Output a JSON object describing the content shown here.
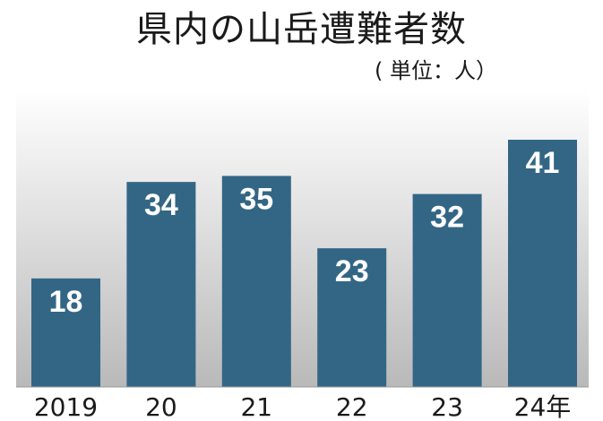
{
  "chart_data": {
    "type": "bar",
    "title": "県内の山岳遭難者数",
    "unit": "( 単位：人）",
    "categories": [
      "2019",
      "20",
      "21",
      "22",
      "23",
      "24年"
    ],
    "values": [
      18,
      34,
      35,
      23,
      32,
      41
    ],
    "ylim": [
      0,
      44
    ],
    "grid": false,
    "bar_color": "#336685",
    "label_color": "#ffffff"
  }
}
